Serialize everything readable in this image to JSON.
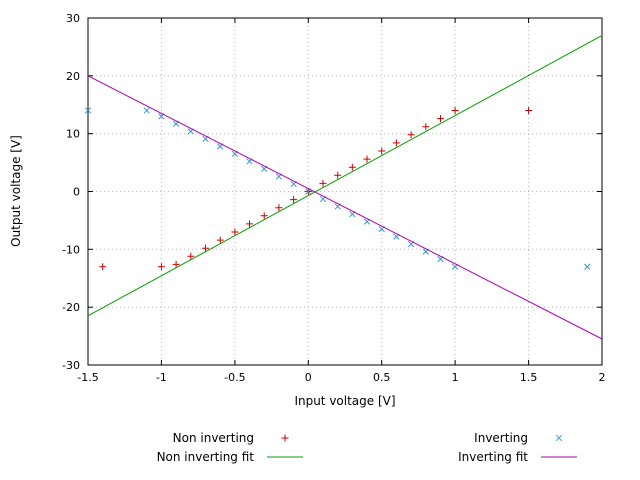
{
  "chart_data": {
    "type": "scatter",
    "title": "",
    "xlabel": "Input voltage [V]",
    "ylabel": "Output voltage [V]",
    "xlim": [
      -1.5,
      2
    ],
    "ylim": [
      -30,
      30
    ],
    "x_ticks": [
      -1.5,
      -1,
      -0.5,
      0,
      0.5,
      1,
      1.5,
      2
    ],
    "y_ticks": [
      -30,
      -20,
      -10,
      0,
      10,
      20,
      30
    ],
    "grid": true,
    "legend_position": "bottom-center",
    "series": [
      {
        "name": "Non inverting",
        "type": "points",
        "marker": "plus",
        "color": "#cc0000",
        "points": [
          [
            -1.4,
            -13
          ],
          [
            -1.0,
            -13
          ],
          [
            -0.9,
            -12.6
          ],
          [
            -0.8,
            -11.2
          ],
          [
            -0.7,
            -9.8
          ],
          [
            -0.6,
            -8.4
          ],
          [
            -0.5,
            -7.0
          ],
          [
            -0.4,
            -5.6
          ],
          [
            -0.3,
            -4.2
          ],
          [
            -0.2,
            -2.8
          ],
          [
            -0.1,
            -1.4
          ],
          [
            0,
            0
          ],
          [
            0.1,
            1.4
          ],
          [
            0.2,
            2.8
          ],
          [
            0.3,
            4.2
          ],
          [
            0.4,
            5.6
          ],
          [
            0.5,
            7.0
          ],
          [
            0.6,
            8.4
          ],
          [
            0.7,
            9.8
          ],
          [
            0.8,
            11.2
          ],
          [
            0.9,
            12.6
          ],
          [
            1.0,
            14
          ],
          [
            1.5,
            14
          ]
        ]
      },
      {
        "name": "Inverting",
        "type": "points",
        "marker": "cross",
        "color": "#3399cc",
        "points": [
          [
            -1.5,
            14
          ],
          [
            -1.1,
            14
          ],
          [
            -1.0,
            13
          ],
          [
            -0.9,
            11.7
          ],
          [
            -0.8,
            10.4
          ],
          [
            -0.7,
            9.1
          ],
          [
            -0.6,
            7.8
          ],
          [
            -0.5,
            6.5
          ],
          [
            -0.4,
            5.2
          ],
          [
            -0.3,
            3.9
          ],
          [
            -0.2,
            2.6
          ],
          [
            -0.1,
            1.3
          ],
          [
            0,
            0
          ],
          [
            0.1,
            -1.3
          ],
          [
            0.2,
            -2.6
          ],
          [
            0.3,
            -3.9
          ],
          [
            0.4,
            -5.2
          ],
          [
            0.5,
            -6.5
          ],
          [
            0.6,
            -7.8
          ],
          [
            0.7,
            -9.1
          ],
          [
            0.8,
            -10.4
          ],
          [
            0.9,
            -11.7
          ],
          [
            1.0,
            -13
          ],
          [
            1.9,
            -13
          ]
        ]
      },
      {
        "name": "Non inverting fit",
        "type": "line",
        "color": "#00a000",
        "points": [
          [
            -1.5,
            -21.5
          ],
          [
            2,
            27
          ]
        ]
      },
      {
        "name": "Inverting fit",
        "type": "line",
        "color": "#b000b0",
        "points": [
          [
            -1.5,
            20
          ],
          [
            2,
            -25.5
          ]
        ]
      }
    ]
  }
}
